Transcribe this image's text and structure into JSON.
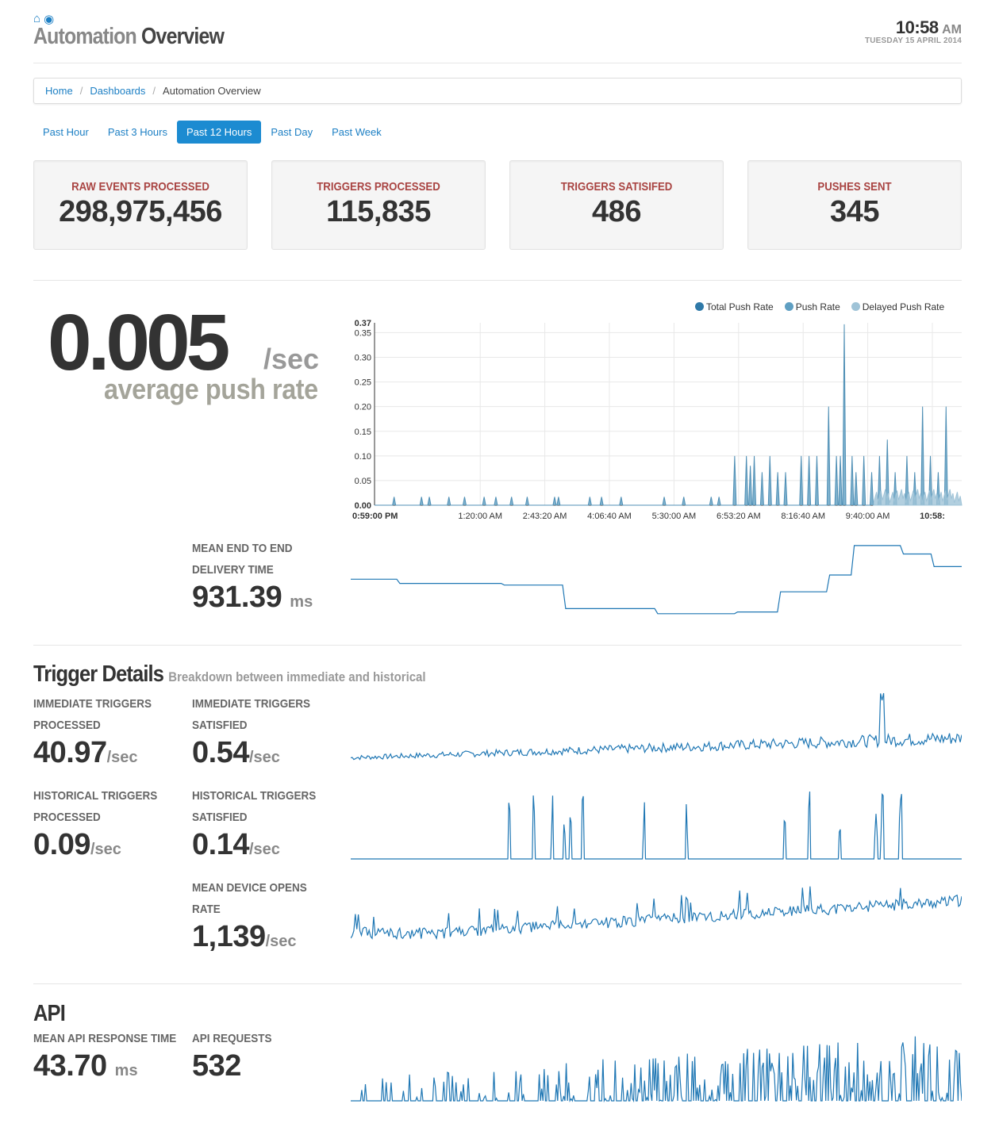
{
  "header": {
    "title_part1": "Automation",
    "title_part2": "Overview",
    "time": "10:58",
    "ampm": "AM",
    "date": "TUESDAY 15 APRIL 2014",
    "icons": [
      "home-icon",
      "dashboard-icon"
    ]
  },
  "breadcrumb": {
    "items": [
      "Home",
      "Dashboards",
      "Automation Overview"
    ],
    "separator": "/"
  },
  "timeframes": {
    "options": [
      "Past Hour",
      "Past 3 Hours",
      "Past 12 Hours",
      "Past Day",
      "Past Week"
    ],
    "active": "Past 12 Hours"
  },
  "stats": [
    {
      "label": "RAW EVENTS PROCESSED",
      "value": "298,975,456"
    },
    {
      "label": "TRIGGERS PROCESSED",
      "value": "115,835"
    },
    {
      "label": "TRIGGERS SATISIFED",
      "value": "486"
    },
    {
      "label": "PUSHES SENT",
      "value": "345"
    }
  ],
  "push_rate": {
    "value": "0.005",
    "unit": "/sec",
    "label": "average push rate"
  },
  "delivery": {
    "label_line1": "MEAN END TO END",
    "label_line2": "DELIVERY TIME",
    "value": "931.39",
    "unit": "ms"
  },
  "trigger_details": {
    "title": "Trigger Details",
    "subtitle": "Breakdown between immediate and historical",
    "metrics": [
      {
        "line1": "IMMEDIATE TRIGGERS",
        "line2": "PROCESSED",
        "value": "40.97",
        "unit": "/sec"
      },
      {
        "line1": "IMMEDIATE TRIGGERS",
        "line2": "SATISFIED",
        "value": "0.54",
        "unit": "/sec"
      },
      {
        "line1": "HISTORICAL TRIGGERS",
        "line2": "PROCESSED",
        "value": "0.09",
        "unit": "/sec"
      },
      {
        "line1": "HISTORICAL TRIGGERS",
        "line2": "SATISFIED",
        "value": "0.14",
        "unit": "/sec"
      },
      {
        "line1": "MEAN DEVICE OPENS",
        "line2": "RATE",
        "value": "1,139",
        "unit": "/sec"
      }
    ]
  },
  "api": {
    "title": "API",
    "metrics": [
      {
        "label": "MEAN API RESPONSE TIME",
        "value": "43.70",
        "unit": "ms"
      },
      {
        "label": "API REQUESTS",
        "value": "532",
        "unit": ""
      }
    ]
  },
  "colors": {
    "link": "#1c7fc4",
    "stat_label": "#a94442",
    "total_push_rate": "#2f79a8",
    "push_rate": "#5f9fc2",
    "delayed_push_rate": "#9fc3d7",
    "sparkline": "#1f77b4"
  },
  "chart_data": {
    "type": "line",
    "title": "",
    "legend_placement": "top-right",
    "grid": true,
    "ylim": [
      0,
      0.37
    ],
    "y_ticks": [
      "0.00",
      "0.05",
      "0.10",
      "0.15",
      "0.20",
      "0.25",
      "0.30",
      "0.35",
      "0.37"
    ],
    "x_ticks": [
      "0:59:00 PM",
      "1:20:00 AM",
      "2:43:20 AM",
      "4:06:40 AM",
      "5:30:00 AM",
      "6:53:20 AM",
      "8:16:40 AM",
      "9:40:00 AM",
      "10:58:"
    ],
    "series": [
      {
        "name": "Total Push Rate",
        "spikes": [
          [
            0.05,
            0.017
          ],
          [
            0.12,
            0.017
          ],
          [
            0.14,
            0.017
          ],
          [
            0.19,
            0.017
          ],
          [
            0.23,
            0.017
          ],
          [
            0.28,
            0.017
          ],
          [
            0.31,
            0.017
          ],
          [
            0.35,
            0.017
          ],
          [
            0.39,
            0.017
          ],
          [
            0.46,
            0.017
          ],
          [
            0.47,
            0.017
          ],
          [
            0.55,
            0.017
          ],
          [
            0.58,
            0.017
          ],
          [
            0.63,
            0.017
          ],
          [
            0.74,
            0.017
          ],
          [
            0.79,
            0.017
          ],
          [
            0.86,
            0.017
          ],
          [
            0.88,
            0.017
          ],
          [
            0.92,
            0.1
          ],
          [
            0.95,
            0.1
          ],
          [
            0.96,
            0.08
          ],
          [
            0.97,
            0.1
          ],
          [
            0.99,
            0.067
          ],
          [
            1.01,
            0.1
          ],
          [
            1.03,
            0.067
          ],
          [
            1.05,
            0.067
          ],
          [
            1.09,
            0.1
          ],
          [
            1.11,
            0.1
          ],
          [
            1.13,
            0.1
          ],
          [
            1.16,
            0.2
          ],
          [
            1.18,
            0.1
          ],
          [
            1.19,
            0.1
          ],
          [
            1.2,
            0.367
          ],
          [
            1.22,
            0.1
          ],
          [
            1.23,
            0.067
          ],
          [
            1.25,
            0.1
          ],
          [
            1.27,
            0.067
          ],
          [
            1.29,
            0.1
          ],
          [
            1.31,
            0.133
          ],
          [
            1.33,
            0.067
          ],
          [
            1.36,
            0.1
          ],
          [
            1.38,
            0.067
          ],
          [
            1.4,
            0.2
          ],
          [
            1.42,
            0.1
          ],
          [
            1.44,
            0.067
          ],
          [
            1.46,
            0.2
          ]
        ]
      },
      {
        "name": "Push Rate",
        "spikes": []
      },
      {
        "name": "Delayed Push Rate",
        "spikes": []
      }
    ]
  }
}
